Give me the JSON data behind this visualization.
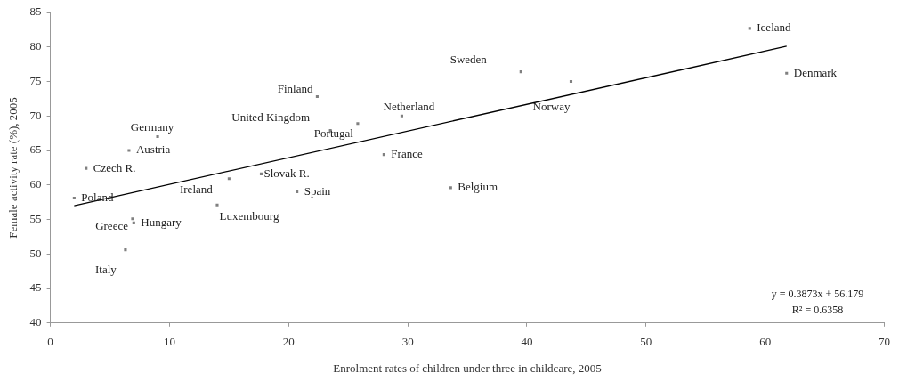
{
  "chart_data": {
    "type": "scatter",
    "xlabel": "Enrolment rates of children under three in childcare, 2005",
    "ylabel": "Female activity rate (%), 2005",
    "xlim": [
      0,
      70
    ],
    "xticks": [
      0,
      10,
      20,
      30,
      40,
      50,
      60,
      70
    ],
    "ylim": [
      40,
      85
    ],
    "yticks": [
      40,
      45,
      50,
      55,
      60,
      65,
      70,
      75,
      80,
      85
    ],
    "grid": false,
    "legend": false,
    "marker": "square",
    "series": [
      {
        "color": "#808080",
        "x": [
          58.7,
          39.5,
          61.8,
          22.4,
          29.5,
          23.5,
          25.8,
          43.7,
          28.0,
          33.6,
          20.7,
          17.7,
          15.0,
          14.0,
          7.0,
          6.9,
          6.3,
          2.0,
          3.0,
          6.6,
          9.0
        ],
        "values": [
          82.7,
          76.4,
          76.2,
          72.8,
          70.0,
          67.9,
          68.9,
          75.0,
          64.4,
          59.6,
          59.0,
          61.6,
          60.9,
          57.1,
          54.5,
          55.1,
          50.6,
          58.1,
          62.4,
          65.0,
          67.0
        ]
      },
      {
        "type": "line",
        "color": "#000000",
        "marker": "none",
        "x": [
          2.0,
          61.8
        ],
        "values": [
          57.0,
          80.1
        ]
      }
    ],
    "annotations": [
      {
        "text": "Iceland",
        "x": 58.7,
        "y": 82.7
      },
      {
        "text": "Sweden",
        "x": 39.5,
        "y": 76.4
      },
      {
        "text": "Denmark",
        "x": 61.8,
        "y": 76.2
      },
      {
        "text": "Finland",
        "x": 22.4,
        "y": 72.8
      },
      {
        "text": "Netherland",
        "x": 29.5,
        "y": 70.0
      },
      {
        "text": "United Kingdom",
        "x": 23.5,
        "y": 67.9
      },
      {
        "text": "Portugal",
        "x": 25.8,
        "y": 68.9
      },
      {
        "text": "Norway",
        "x": 43.7,
        "y": 75.0
      },
      {
        "text": "France",
        "x": 28.0,
        "y": 64.4
      },
      {
        "text": "Belgium",
        "x": 33.6,
        "y": 59.6
      },
      {
        "text": "Spain",
        "x": 20.7,
        "y": 59.0
      },
      {
        "text": "Slovak R.",
        "x": 17.7,
        "y": 61.6
      },
      {
        "text": "Ireland",
        "x": 15.0,
        "y": 60.9
      },
      {
        "text": "Luxembourg",
        "x": 14.0,
        "y": 57.1
      },
      {
        "text": "Hungary",
        "x": 7.0,
        "y": 54.5
      },
      {
        "text": "Greece",
        "x": 6.9,
        "y": 55.1
      },
      {
        "text": "Italy",
        "x": 6.3,
        "y": 50.6
      },
      {
        "text": "Poland",
        "x": 2.0,
        "y": 58.1
      },
      {
        "text": "Czech R.",
        "x": 3.0,
        "y": 62.4
      },
      {
        "text": "Austria",
        "x": 6.6,
        "y": 65.0
      },
      {
        "text": "Germany",
        "x": 9.0,
        "y": 67.0
      },
      "y = 0.3873x + 56.179",
      "R² = 0.6358"
    ]
  }
}
